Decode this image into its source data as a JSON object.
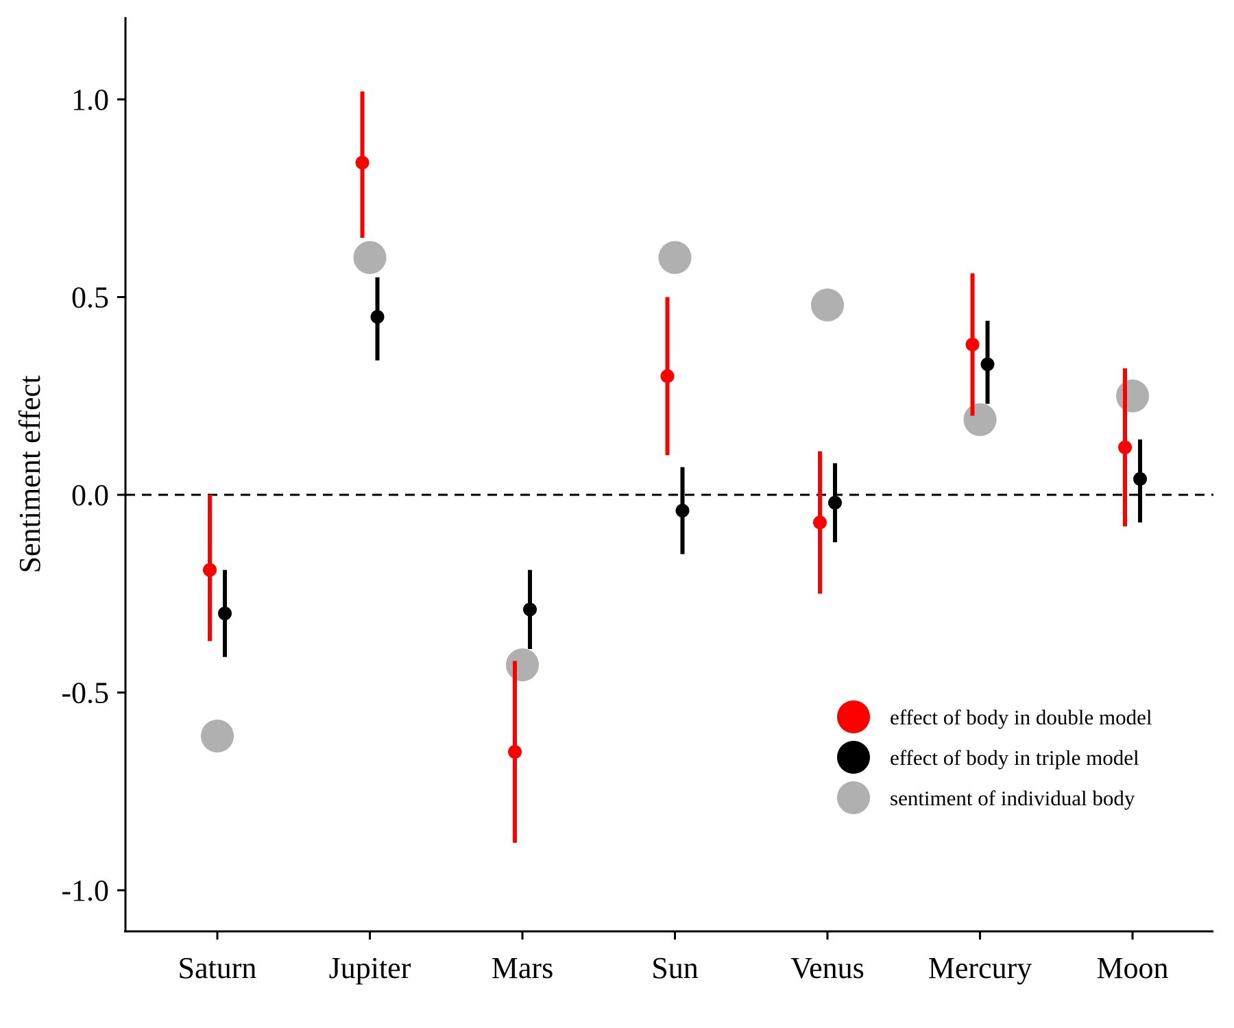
{
  "chart_data": {
    "type": "scatter",
    "title": "",
    "xlabel": "",
    "ylabel": "Sentiment effect",
    "categories": [
      "Saturn",
      "Jupiter",
      "Mars",
      "Sun",
      "Venus",
      "Mercury",
      "Moon"
    ],
    "ylim": [
      -1.2,
      1.2
    ],
    "yticks": [
      1.0,
      0.5,
      0.0,
      -0.5,
      -1.0
    ],
    "ytick_labels": [
      "1.0",
      "0.5",
      "0.0",
      "-0.5",
      "-1.0"
    ],
    "reference_line": {
      "y": 0,
      "style": "dashed"
    },
    "grid": false,
    "legend_position": "bottom-right",
    "series": [
      {
        "name": "effect of body in double model",
        "color": "#ff0000",
        "values": [
          -0.19,
          0.84,
          -0.65,
          0.3,
          -0.07,
          0.38,
          0.12
        ],
        "lower": [
          -0.37,
          0.65,
          -0.88,
          0.1,
          -0.25,
          0.2,
          -0.08
        ],
        "upper": [
          0.0,
          1.02,
          -0.42,
          0.5,
          0.11,
          0.56,
          0.32
        ]
      },
      {
        "name": "effect of body in triple model",
        "color": "#000000",
        "values": [
          -0.3,
          0.45,
          -0.29,
          -0.04,
          -0.02,
          0.33,
          0.04
        ],
        "lower": [
          -0.41,
          0.34,
          -0.39,
          -0.15,
          -0.12,
          0.23,
          -0.07
        ],
        "upper": [
          -0.19,
          0.55,
          -0.19,
          0.07,
          0.08,
          0.44,
          0.14
        ]
      },
      {
        "name": "sentiment of individual body",
        "color": "#b0b0b0",
        "values": [
          -0.61,
          0.6,
          -0.43,
          0.6,
          0.48,
          0.19,
          0.25
        ]
      }
    ]
  }
}
